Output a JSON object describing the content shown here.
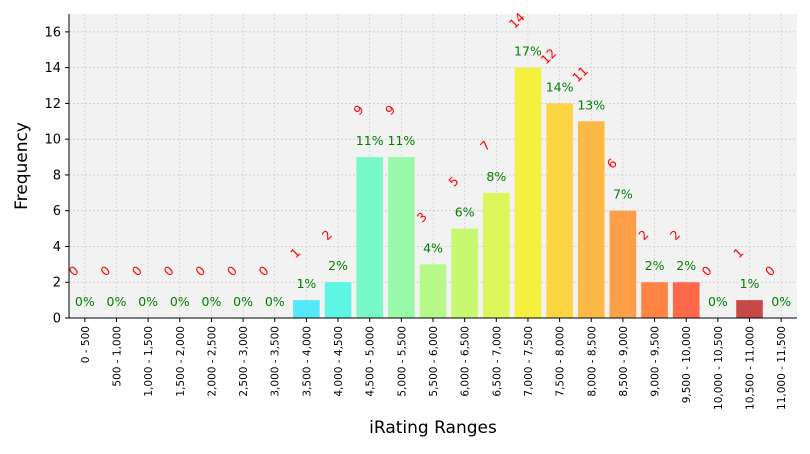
{
  "chart_data": {
    "type": "bar",
    "title": "",
    "xlabel": "iRating Ranges",
    "ylabel": "Frequency",
    "ylim": [
      0,
      17
    ],
    "yticks": [
      0,
      2,
      4,
      6,
      8,
      10,
      12,
      14,
      16
    ],
    "grid": true,
    "categories": [
      "0 - 500",
      "500 - 1,000",
      "1,000 - 1,500",
      "1,500 - 2,000",
      "2,000 - 2,500",
      "2,500 - 3,000",
      "3,000 - 3,500",
      "3,500 - 4,000",
      "4,000 - 4,500",
      "4,500 - 5,000",
      "5,000 - 5,500",
      "5,500 - 6,000",
      "6,000 - 6,500",
      "6,500 - 7,000",
      "7,000 - 7,500",
      "7,500 - 8,000",
      "8,000 - 8,500",
      "8,500 - 9,000",
      "9,000 - 9,500",
      "9,500 - 10,000",
      "10,000 - 10,500",
      "10,500 - 11,000",
      "11,000 - 11,500"
    ],
    "values": [
      0,
      0,
      0,
      0,
      0,
      0,
      0,
      1,
      2,
      9,
      9,
      3,
      5,
      7,
      14,
      12,
      11,
      6,
      2,
      2,
      0,
      1,
      0
    ],
    "percent_labels": [
      "0%",
      "0%",
      "0%",
      "0%",
      "0%",
      "0%",
      "0%",
      "1%",
      "2%",
      "11%",
      "11%",
      "4%",
      "6%",
      "8%",
      "17%",
      "14%",
      "13%",
      "7%",
      "2%",
      "2%",
      "0%",
      "1%",
      "0%"
    ],
    "count_labels": [
      "0",
      "0",
      "0",
      "0",
      "0",
      "0",
      "0",
      "1",
      "2",
      "9",
      "9",
      "3",
      "5",
      "7",
      "14",
      "12",
      "11",
      "6",
      "2",
      "2",
      "0",
      "1",
      "0"
    ],
    "bar_colors": [
      "#3fe0f5",
      "#44e6f2",
      "#48ebee",
      "#4defec",
      "#50f2ea",
      "#53f5e8",
      "#55f8e6",
      "#55e8f8",
      "#5df5e4",
      "#78f8c8",
      "#98f9a8",
      "#b6f988",
      "#c8f870",
      "#dcf55a",
      "#f5f040",
      "#fdd444",
      "#fbba48",
      "#fc9f48",
      "#fe8444",
      "#ff6848",
      "#e45050",
      "#c84848",
      "#b04040"
    ],
    "colors": {
      "plot_background": "#f2f2f2",
      "grid": "#c8c8c8",
      "percent_label": "#008000",
      "count_label": "#ff0000",
      "axis": "#000000"
    }
  }
}
